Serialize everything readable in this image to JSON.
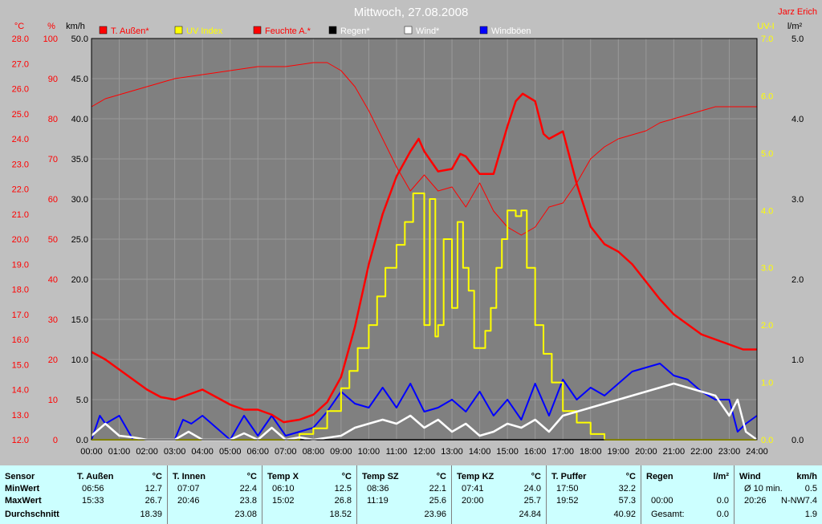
{
  "header": {
    "title": "Mittwoch, 27.08.2008",
    "author": "Jarz Erich",
    "units_left": [
      "°C",
      "%",
      "km/h"
    ],
    "units_right": [
      "UV-I",
      "l/m²"
    ]
  },
  "legend": [
    {
      "label": "T. Außen*",
      "color": "#ff0000"
    },
    {
      "label": "UV Index",
      "color": "#ffff00"
    },
    {
      "label": "Feuchte A.*",
      "color": "#ff0000"
    },
    {
      "label": "Regen*",
      "color": "#000000"
    },
    {
      "label": "Wind*",
      "color": "#ffffff"
    },
    {
      "label": "Windböen",
      "color": "#0000ff"
    }
  ],
  "colors": {
    "temp": "#ff0000",
    "humidity": "#ff0000",
    "uv": "#ffff00",
    "wind": "#ffffff",
    "gust": "#0000ff",
    "plot_bg": "#808080",
    "grid": "#999999",
    "rain": "#000000"
  },
  "chart_data": {
    "type": "line",
    "title": "Mittwoch, 27.08.2008",
    "grid": true,
    "legend_position": "top",
    "x_label_ticks": [
      "00:00",
      "01:00",
      "02:00",
      "03:00",
      "04:00",
      "05:00",
      "06:00",
      "07:00",
      "08:00",
      "09:00",
      "10:00",
      "11:00",
      "12:00",
      "13:00",
      "14:00",
      "15:00",
      "16:00",
      "17:00",
      "18:00",
      "19:00",
      "20:00",
      "21:00",
      "22:00",
      "23:00",
      "24:00"
    ],
    "axes": {
      "temp_c": {
        "ticks": [
          "12.0",
          "13.0",
          "14.0",
          "15.0",
          "16.0",
          "17.0",
          "18.0",
          "19.0",
          "20.0",
          "21.0",
          "22.0",
          "23.0",
          "24.0",
          "25.0",
          "26.0",
          "27.0",
          "28.0"
        ],
        "range": [
          12,
          28
        ]
      },
      "humidity_pct": {
        "ticks": [
          "0",
          "10",
          "20",
          "30",
          "40",
          "50",
          "60",
          "70",
          "80",
          "90",
          "100"
        ],
        "range": [
          0,
          100
        ]
      },
      "wind_kmh": {
        "ticks": [
          "0.0",
          "5.0",
          "10.0",
          "15.0",
          "20.0",
          "25.0",
          "30.0",
          "35.0",
          "40.0",
          "45.0",
          "50.0"
        ],
        "range": [
          0,
          50
        ]
      },
      "uv_index": {
        "ticks": [
          "0.0",
          "1.0",
          "2.0",
          "3.0",
          "4.0",
          "5.0",
          "6.0",
          "7.0"
        ],
        "range": [
          0,
          7
        ]
      },
      "rain_lm2": {
        "ticks": [
          "0.0",
          "1.0",
          "2.0",
          "3.0",
          "4.0",
          "5.0"
        ],
        "range": [
          0,
          5
        ]
      }
    },
    "series": [
      {
        "name": "T. Außen*",
        "axis": "temp_c",
        "x": [
          0,
          0.5,
          1,
          1.5,
          2,
          2.5,
          3,
          3.5,
          4,
          4.5,
          5,
          5.5,
          6,
          6.5,
          6.93,
          7.5,
          8,
          8.5,
          9,
          9.5,
          10,
          10.5,
          11,
          11.5,
          11.8,
          12,
          12.5,
          13,
          13.3,
          13.5,
          14,
          14.5,
          15,
          15.3,
          15.55,
          16,
          16.3,
          16.5,
          17,
          17.5,
          18,
          18.5,
          19,
          19.5,
          20,
          20.5,
          21,
          21.5,
          22,
          22.5,
          23,
          23.5,
          24
        ],
        "values": [
          15.5,
          15.2,
          14.8,
          14.4,
          14.0,
          13.7,
          13.6,
          13.8,
          14.0,
          13.7,
          13.4,
          13.2,
          13.2,
          13.0,
          12.7,
          12.8,
          13.0,
          13.5,
          14.5,
          16.5,
          19.0,
          21.0,
          22.5,
          23.5,
          24.0,
          23.5,
          22.7,
          22.8,
          23.4,
          23.3,
          22.6,
          22.6,
          24.5,
          25.5,
          25.8,
          25.5,
          24.2,
          24.0,
          24.3,
          22.2,
          20.5,
          19.8,
          19.5,
          19.0,
          18.3,
          17.6,
          17.0,
          16.6,
          16.2,
          16.0,
          15.8,
          15.6,
          15.6
        ]
      },
      {
        "name": "Feuchte A.*",
        "axis": "humidity_pct",
        "x": [
          0,
          0.5,
          1,
          2,
          3,
          4,
          5,
          6,
          7,
          8,
          8.5,
          9,
          9.5,
          10,
          10.5,
          11,
          11.5,
          12,
          12.5,
          13,
          13.5,
          14,
          14.5,
          15,
          15.5,
          16,
          16.5,
          17,
          17.5,
          18,
          18.5,
          19,
          19.5,
          20,
          20.5,
          21,
          21.5,
          22,
          22.5,
          23,
          23.5,
          24
        ],
        "values": [
          83,
          85,
          86,
          88,
          90,
          91,
          92,
          93,
          93,
          94,
          94,
          92,
          88,
          82,
          75,
          68,
          62,
          66,
          62,
          63,
          58,
          64,
          57,
          53,
          51,
          53,
          58,
          59,
          64,
          70,
          73,
          75,
          76,
          77,
          79,
          80,
          81,
          82,
          83,
          83,
          83,
          83
        ]
      },
      {
        "name": "UV Index",
        "axis": "uv_index",
        "x": [
          0,
          7,
          7.5,
          8,
          8.5,
          9,
          9.3,
          9.6,
          10,
          10.3,
          10.6,
          11,
          11.3,
          11.6,
          11.8,
          12,
          12.2,
          12.4,
          12.5,
          12.7,
          13,
          13.2,
          13.4,
          13.6,
          13.8,
          14,
          14.2,
          14.4,
          14.6,
          14.8,
          15,
          15.3,
          15.5,
          15.7,
          16,
          16.3,
          16.6,
          17,
          17.5,
          18,
          18.5,
          19,
          24
        ],
        "values": [
          0,
          0,
          0.1,
          0.2,
          0.5,
          0.9,
          1.2,
          1.6,
          2.0,
          2.5,
          3.0,
          3.4,
          3.8,
          4.3,
          4.3,
          2.0,
          4.2,
          1.8,
          2.0,
          3.5,
          2.3,
          3.8,
          3.0,
          2.6,
          1.6,
          1.6,
          1.9,
          2.3,
          3.0,
          3.5,
          4.0,
          3.9,
          4.0,
          3.0,
          2.0,
          1.5,
          1.0,
          0.5,
          0.3,
          0.1,
          0.0,
          0.0,
          0.0
        ]
      },
      {
        "name": "Wind*",
        "axis": "wind_kmh",
        "x": [
          0,
          0.5,
          1,
          1.5,
          2,
          3,
          3.5,
          4,
          5,
          5.5,
          6,
          6.5,
          7,
          7.5,
          8,
          9,
          9.5,
          10,
          10.5,
          11,
          11.5,
          12,
          12.5,
          13,
          13.5,
          14,
          14.5,
          15,
          15.5,
          16,
          16.5,
          17,
          17.5,
          18,
          18.5,
          19,
          19.5,
          20,
          20.5,
          21,
          21.5,
          22,
          22.5,
          23,
          23.3,
          23.6,
          24
        ],
        "values": [
          0.5,
          2.0,
          0.5,
          0.3,
          0,
          0,
          1.0,
          0,
          0,
          0.8,
          0,
          1.5,
          0,
          0.3,
          0,
          0.5,
          1.5,
          2.0,
          2.5,
          2.0,
          3.0,
          1.5,
          2.5,
          1.0,
          2.0,
          0.5,
          1.0,
          2.0,
          1.5,
          2.5,
          1.0,
          3.0,
          3.5,
          4.0,
          4.5,
          5.0,
          5.5,
          6.0,
          6.5,
          7.0,
          6.5,
          6.0,
          5.5,
          3.0,
          5.0,
          1.0,
          0
        ]
      },
      {
        "name": "Windböen",
        "axis": "wind_kmh",
        "x": [
          0,
          0.3,
          0.5,
          1,
          1.5,
          2,
          3,
          3.3,
          3.6,
          4,
          5,
          5.5,
          6,
          6.5,
          7,
          7.5,
          8,
          8.5,
          9,
          9.5,
          10,
          10.5,
          11,
          11.5,
          12,
          12.5,
          13,
          13.5,
          14,
          14.5,
          15,
          15.5,
          16,
          16.5,
          17,
          17.5,
          18,
          18.5,
          19,
          19.5,
          20,
          20.5,
          21,
          21.5,
          22,
          22.5,
          23,
          23.3,
          23.6,
          24
        ],
        "values": [
          0,
          3.0,
          2.0,
          3.0,
          0,
          0,
          0,
          2.5,
          2.0,
          3.0,
          0,
          3.0,
          0.5,
          3.0,
          0.5,
          1.0,
          1.5,
          3.5,
          6.0,
          4.5,
          4.0,
          6.5,
          4.0,
          7.0,
          3.5,
          4.0,
          5.0,
          3.5,
          6.0,
          3.0,
          5.0,
          2.5,
          7.0,
          3.0,
          7.5,
          5.0,
          6.5,
          5.5,
          7.0,
          8.5,
          9.0,
          9.5,
          8.0,
          7.5,
          6.0,
          5.0,
          5.0,
          1.0,
          2.0,
          3.0
        ]
      },
      {
        "name": "Regen*",
        "axis": "rain_lm2",
        "x": [
          0,
          24
        ],
        "values": [
          0,
          0
        ]
      }
    ]
  },
  "stats": {
    "labels": {
      "title": "Sensor",
      "min": "MinWert",
      "max": "MaxWert",
      "avg": "Durchschnitt"
    },
    "columns": [
      {
        "name": "T. Außen",
        "unit": "°C",
        "min_time": "06:56",
        "min": "12.7",
        "max_time": "15:33",
        "max": "26.7",
        "avg": "18.39"
      },
      {
        "name": "T. Innen",
        "unit": "°C",
        "min_time": "07:07",
        "min": "22.4",
        "max_time": "20:46",
        "max": "23.8",
        "avg": "23.08"
      },
      {
        "name": "Temp X",
        "unit": "°C",
        "min_time": "06:10",
        "min": "12.5",
        "max_time": "15:02",
        "max": "26.8",
        "avg": "18.52"
      },
      {
        "name": "Temp SZ",
        "unit": "°C",
        "min_time": "08:36",
        "min": "22.1",
        "max_time": "11:19",
        "max": "25.6",
        "avg": "23.96"
      },
      {
        "name": "Temp KZ",
        "unit": "°C",
        "min_time": "07:41",
        "min": "24.0",
        "max_time": "20:00",
        "max": "25.7",
        "avg": "24.84"
      },
      {
        "name": "T. Puffer",
        "unit": "°C",
        "min_time": "17:50",
        "min": "32.2",
        "max_time": "19:52",
        "max": "57.3",
        "avg": "40.92"
      },
      {
        "name": "Regen",
        "unit": "l/m²",
        "min_time": "",
        "min": "",
        "max_time": "00:00",
        "max": "0.0",
        "avg_label": "Gesamt:",
        "avg": "0.0"
      },
      {
        "name": "Wind",
        "unit": "km/h",
        "min_time": "Ø 10 min.",
        "min": "0.5",
        "max_time": "20:26",
        "max_mid": "N-NW",
        "max": "7.4",
        "avg": "1.9"
      }
    ]
  }
}
